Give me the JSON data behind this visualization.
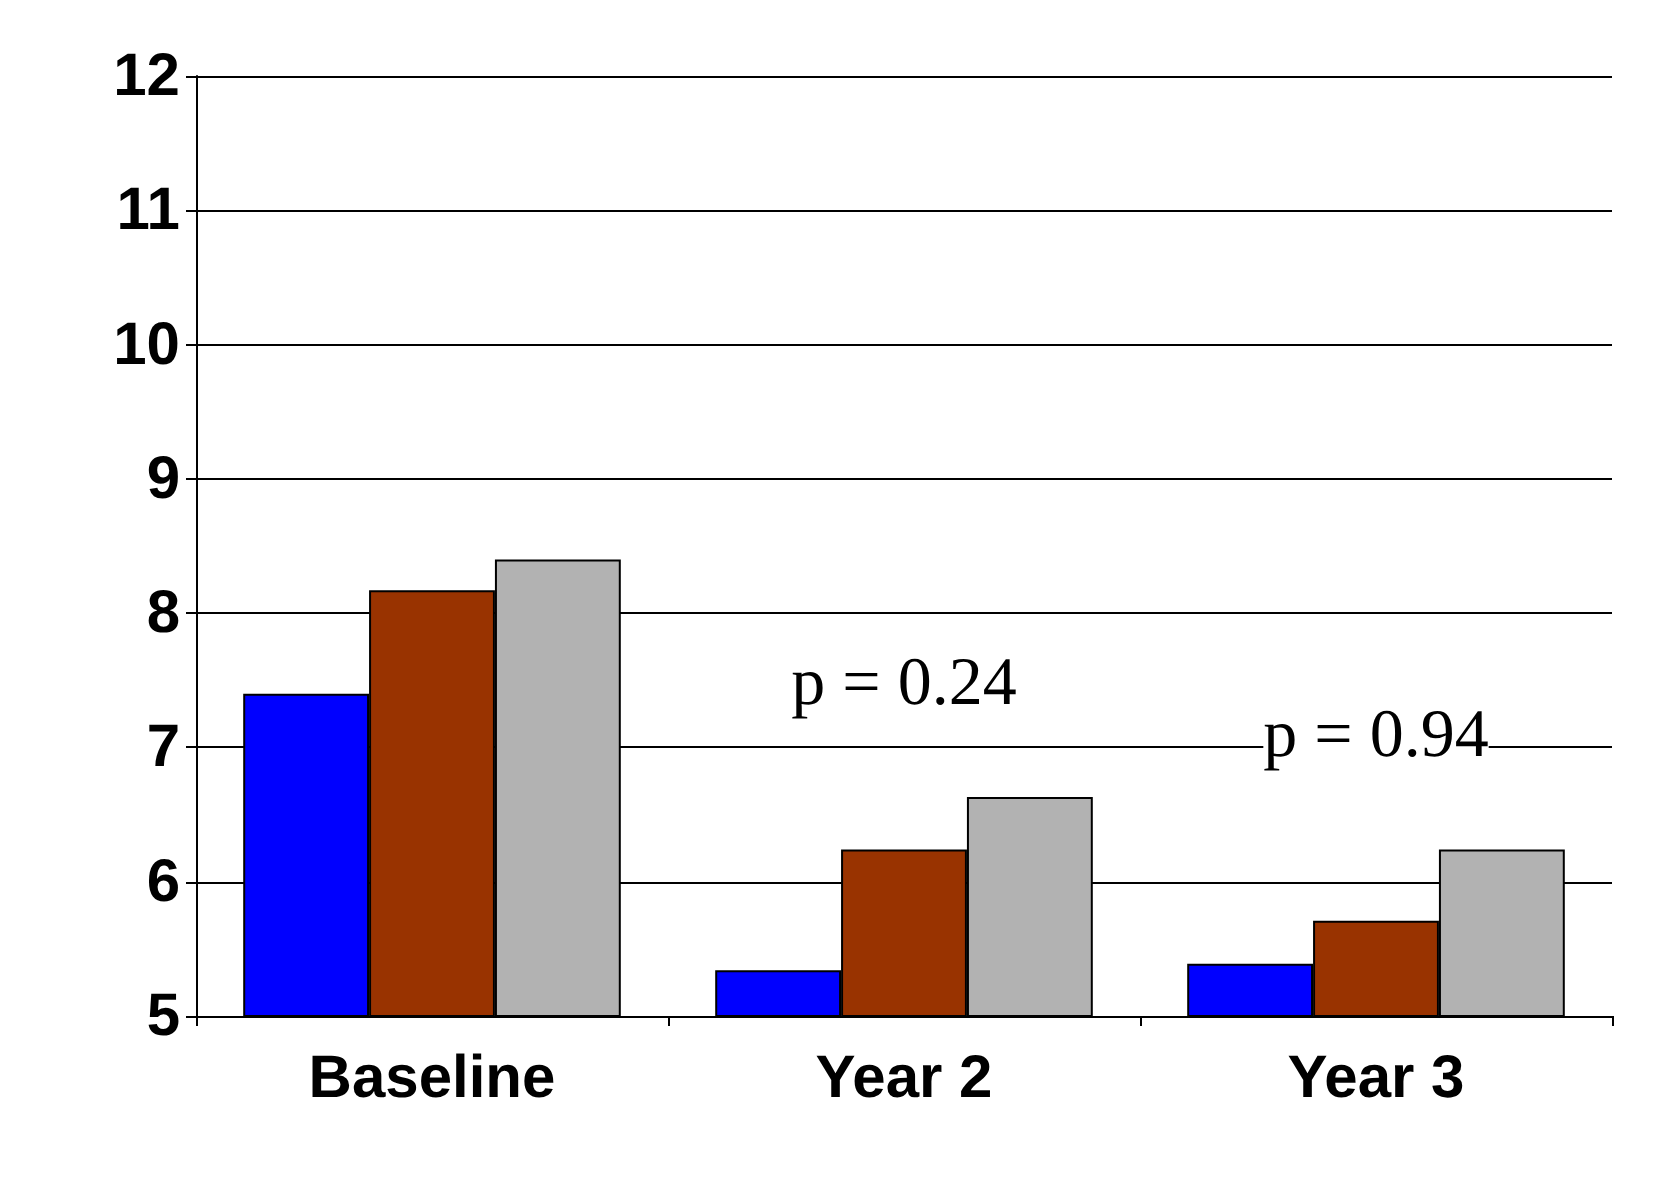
{
  "chart_data": {
    "type": "bar",
    "categories": [
      "Baseline",
      "Year 2",
      "Year 3"
    ],
    "series": [
      {
        "color": "#0000ff",
        "values": [
          7.4,
          5.34,
          5.39
        ]
      },
      {
        "color": "#993300",
        "values": [
          8.17,
          6.24,
          5.71
        ]
      },
      {
        "color": "#b2b2b2",
        "values": [
          8.4,
          6.63,
          6.24
        ]
      }
    ],
    "ylim": [
      5,
      12
    ],
    "yticks": [
      5,
      6,
      7,
      8,
      9,
      10,
      11,
      12
    ],
    "grid": "y",
    "annotations": [
      "p = 0.24",
      "p = 0.94"
    ]
  }
}
